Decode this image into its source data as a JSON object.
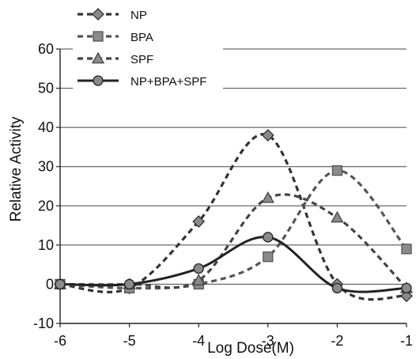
{
  "chart_data": {
    "type": "line",
    "xlabel": "Log Dose(M)",
    "ylabel": "Relative Activity",
    "xlim": [
      -6,
      -1
    ],
    "ylim": [
      -10,
      60
    ],
    "x_ticks": [
      -6,
      -5,
      -4,
      -3,
      -2,
      -1
    ],
    "y_ticks": [
      -10,
      0,
      10,
      20,
      30,
      40,
      50,
      60
    ],
    "x_tick_labels": [
      "-6",
      "-5",
      "-4",
      "-3",
      "-2",
      "-1"
    ],
    "y_tick_labels": [
      "-10",
      "0",
      "10",
      "20",
      "30",
      "40",
      "50",
      "60"
    ],
    "grid": "horizontal",
    "legend_position": "top-left",
    "series": [
      {
        "name": "NP",
        "marker": "diamond",
        "line": "dashed",
        "color": "#333333",
        "x": [
          -6,
          -5,
          -4,
          -3,
          -2,
          -1
        ],
        "y": [
          0,
          -1,
          16,
          38,
          0,
          -3
        ]
      },
      {
        "name": "BPA",
        "marker": "square",
        "line": "dashed",
        "color": "#555555",
        "x": [
          -6,
          -5,
          -4,
          -3,
          -2,
          -1
        ],
        "y": [
          0,
          -1,
          0,
          7,
          29,
          9
        ]
      },
      {
        "name": "SPF",
        "marker": "triangle",
        "line": "dashed",
        "color": "#444444",
        "x": [
          -6,
          -5,
          -4,
          -3,
          -2,
          -1
        ],
        "y": [
          0,
          0,
          1,
          22,
          17,
          -1
        ]
      },
      {
        "name": "NP+BPA+SPF",
        "marker": "circle",
        "line": "solid",
        "color": "#222222",
        "x": [
          -6,
          -5,
          -4,
          -3,
          -2,
          -1
        ],
        "y": [
          0,
          0,
          4,
          12,
          -1,
          -1
        ]
      }
    ]
  }
}
